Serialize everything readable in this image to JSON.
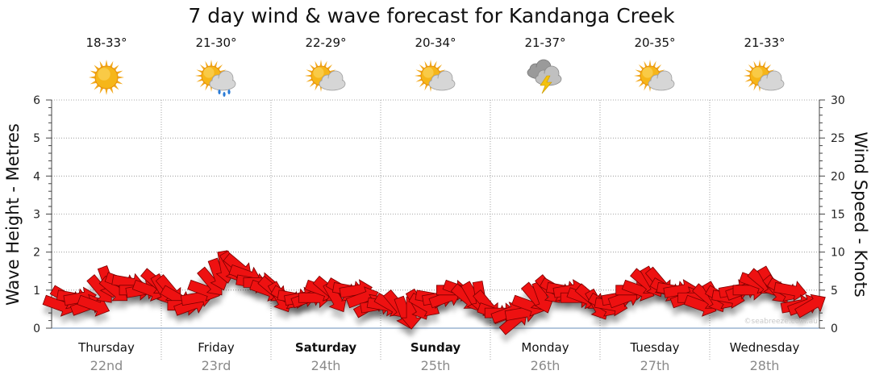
{
  "chart_data": {
    "type": "line",
    "title": "7 day wind & wave forecast for Kandanga Creek",
    "ylabel_left": "Wave Height - Metres",
    "ylabel_right": "Wind Speed - Knots",
    "ylim_left": [
      0,
      6
    ],
    "ylim_right": [
      0,
      30
    ],
    "yticks_left": [
      "0",
      "1",
      "2",
      "3",
      "4",
      "5",
      "6"
    ],
    "yticks_right": [
      "0",
      "5",
      "10",
      "15",
      "20",
      "25",
      "30"
    ],
    "grid": true,
    "watermark": "©seabreeze.com.au",
    "days": [
      {
        "name": "Thursday",
        "date": "22nd",
        "temp": "18-33°",
        "icon": "sunny-icon",
        "bold": false
      },
      {
        "name": "Friday",
        "date": "23rd",
        "temp": "21-30°",
        "icon": "sun-cloud-rain-icon",
        "bold": false
      },
      {
        "name": "Saturday",
        "date": "24th",
        "temp": "22-29°",
        "icon": "sun-cloud-icon",
        "bold": true
      },
      {
        "name": "Sunday",
        "date": "25th",
        "temp": "20-34°",
        "icon": "sun-cloud-icon",
        "bold": true
      },
      {
        "name": "Monday",
        "date": "26th",
        "temp": "21-37°",
        "icon": "storm-icon",
        "bold": false
      },
      {
        "name": "Tuesday",
        "date": "27th",
        "temp": "20-35°",
        "icon": "sun-cloud-icon",
        "bold": false
      },
      {
        "name": "Wednesday",
        "date": "28th",
        "temp": "21-33°",
        "icon": "sun-cloud-icon",
        "bold": false
      }
    ],
    "series": [
      {
        "values_knots": [
          3,
          4,
          4,
          4,
          3,
          3,
          5,
          6,
          5,
          6,
          6,
          5,
          5,
          5,
          6,
          5,
          5,
          4,
          3,
          3,
          4,
          5,
          6,
          7,
          8,
          8,
          8,
          7,
          6,
          6,
          5,
          5,
          4,
          4,
          4,
          4,
          4,
          4,
          5,
          5,
          4,
          5,
          5,
          5,
          4,
          3,
          3,
          3,
          3,
          3,
          2,
          2,
          3,
          3,
          4,
          4,
          4,
          5,
          5,
          4,
          4,
          4,
          3,
          2,
          2,
          2,
          1,
          2,
          3,
          4,
          4,
          5,
          5,
          5,
          5,
          4,
          4,
          4,
          3,
          3,
          3,
          4,
          4,
          5,
          5,
          6,
          6,
          6,
          5,
          5,
          5,
          4,
          4,
          3,
          4,
          4,
          4,
          4,
          5,
          5,
          5,
          6,
          6,
          6,
          5,
          5,
          5,
          3,
          3,
          3
        ],
        "color": "#ff0000"
      }
    ],
    "wind_dir_deg": [
      200,
      210,
      190,
      170,
      160,
      200,
      230,
      250,
      220,
      200,
      190,
      180,
      170,
      200,
      220,
      240,
      230,
      210,
      180,
      160,
      170,
      200,
      230,
      250,
      260,
      240,
      220,
      200,
      190,
      180,
      200,
      220,
      240,
      210,
      190,
      170,
      160,
      180,
      200,
      220,
      240,
      210,
      190,
      170,
      160,
      150,
      170,
      190,
      210,
      230,
      250,
      270,
      240,
      210,
      190,
      170,
      160,
      180,
      200,
      220,
      240,
      260,
      230,
      200,
      180,
      160,
      140,
      170,
      200,
      230,
      250,
      230,
      210,
      190,
      170,
      180,
      200,
      220,
      240,
      210,
      190,
      170,
      160,
      180,
      200,
      220,
      240,
      230,
      210,
      190,
      170,
      160,
      180,
      200,
      220,
      240,
      210,
      190,
      170,
      160,
      180,
      200,
      220,
      240,
      230,
      210,
      190,
      170,
      160,
      150
    ]
  }
}
